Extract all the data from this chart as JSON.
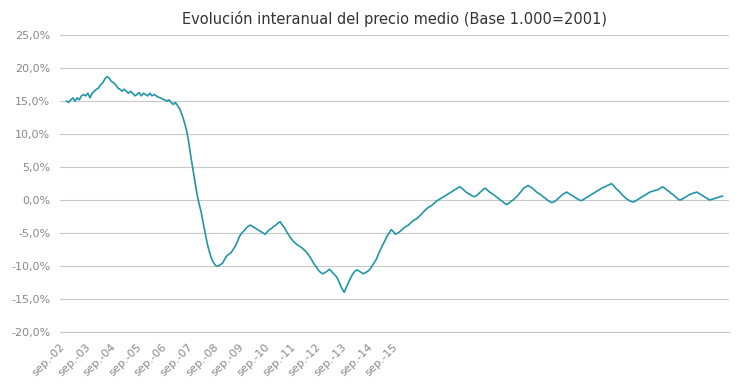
{
  "title": "Evolución interanual del precio medio (Base 1.000=2001)",
  "line_color": "#2196a8",
  "background_color": "#ffffff",
  "grid_color": "#c8c8c8",
  "ylim": [
    -0.2,
    0.25
  ],
  "yticks": [
    -0.2,
    -0.15,
    -0.1,
    -0.05,
    0.0,
    0.05,
    0.1,
    0.15,
    0.2,
    0.25
  ],
  "xtick_labels": [
    "sep.-02",
    "sep.-03",
    "sep.-04",
    "sep.-05",
    "sep.-06",
    "sep.-07",
    "sep.-08",
    "sep.-09",
    "sep.-10",
    "sep.-11",
    "sep.-12",
    "sep.-13",
    "sep.-14",
    "sep.-15"
  ],
  "series": [
    0.15,
    0.148,
    0.152,
    0.155,
    0.15,
    0.155,
    0.152,
    0.158,
    0.16,
    0.158,
    0.162,
    0.155,
    0.162,
    0.165,
    0.168,
    0.17,
    0.175,
    0.178,
    0.184,
    0.187,
    0.185,
    0.18,
    0.178,
    0.175,
    0.17,
    0.168,
    0.165,
    0.168,
    0.165,
    0.162,
    0.165,
    0.162,
    0.158,
    0.16,
    0.163,
    0.158,
    0.162,
    0.16,
    0.158,
    0.162,
    0.158,
    0.16,
    0.158,
    0.156,
    0.155,
    0.153,
    0.152,
    0.15,
    0.152,
    0.148,
    0.145,
    0.148,
    0.143,
    0.138,
    0.13,
    0.12,
    0.108,
    0.092,
    0.07,
    0.05,
    0.03,
    0.01,
    -0.005,
    -0.018,
    -0.035,
    -0.052,
    -0.068,
    -0.08,
    -0.09,
    -0.096,
    -0.1,
    -0.1,
    -0.098,
    -0.096,
    -0.09,
    -0.085,
    -0.082,
    -0.08,
    -0.075,
    -0.07,
    -0.063,
    -0.055,
    -0.05,
    -0.047,
    -0.043,
    -0.04,
    -0.038,
    -0.04,
    -0.042,
    -0.044,
    -0.046,
    -0.048,
    -0.05,
    -0.052,
    -0.048,
    -0.045,
    -0.043,
    -0.04,
    -0.038,
    -0.035,
    -0.033,
    -0.038,
    -0.042,
    -0.048,
    -0.053,
    -0.058,
    -0.062,
    -0.065,
    -0.068,
    -0.07,
    -0.072,
    -0.075,
    -0.078,
    -0.082,
    -0.087,
    -0.092,
    -0.098,
    -0.102,
    -0.107,
    -0.11,
    -0.112,
    -0.11,
    -0.108,
    -0.105,
    -0.108,
    -0.112,
    -0.115,
    -0.12,
    -0.128,
    -0.135,
    -0.14,
    -0.132,
    -0.125,
    -0.118,
    -0.112,
    -0.108,
    -0.106,
    -0.108,
    -0.11,
    -0.112,
    -0.11,
    -0.108,
    -0.105,
    -0.1,
    -0.095,
    -0.09,
    -0.082,
    -0.075,
    -0.068,
    -0.062,
    -0.055,
    -0.05,
    -0.045,
    -0.048,
    -0.052,
    -0.05,
    -0.048,
    -0.045,
    -0.042,
    -0.04,
    -0.038,
    -0.035,
    -0.032,
    -0.03,
    -0.028,
    -0.025,
    -0.022,
    -0.018,
    -0.015,
    -0.012,
    -0.01,
    -0.008,
    -0.005,
    -0.002,
    0.0,
    0.002,
    0.004,
    0.006,
    0.008,
    0.01,
    0.012,
    0.014,
    0.016,
    0.018,
    0.02,
    0.018,
    0.015,
    0.012,
    0.01,
    0.008,
    0.006,
    0.005,
    0.007,
    0.01,
    0.013,
    0.016,
    0.018,
    0.015,
    0.012,
    0.01,
    0.008,
    0.005,
    0.003,
    0.0,
    -0.002,
    -0.005,
    -0.007,
    -0.005,
    -0.002,
    0.0,
    0.003,
    0.006,
    0.01,
    0.014,
    0.018,
    0.02,
    0.022,
    0.02,
    0.018,
    0.015,
    0.012,
    0.01,
    0.008,
    0.005,
    0.003,
    0.0,
    -0.002,
    -0.004,
    -0.003,
    -0.001,
    0.002,
    0.005,
    0.008,
    0.01,
    0.012,
    0.01,
    0.008,
    0.006,
    0.004,
    0.002,
    0.0,
    -0.001,
    0.001,
    0.003,
    0.005,
    0.007,
    0.009,
    0.011,
    0.013,
    0.015,
    0.017,
    0.019,
    0.02,
    0.022,
    0.023,
    0.025,
    0.022,
    0.018,
    0.015,
    0.012,
    0.008,
    0.005,
    0.002,
    0.0,
    -0.002,
    -0.003,
    -0.002,
    0.0,
    0.002,
    0.004,
    0.006,
    0.008,
    0.01,
    0.012,
    0.013,
    0.014,
    0.015,
    0.016,
    0.018,
    0.02,
    0.018,
    0.015,
    0.013,
    0.01,
    0.008,
    0.005,
    0.002,
    0.0,
    0.001,
    0.003,
    0.005,
    0.007,
    0.009,
    0.01,
    0.011,
    0.012,
    0.01,
    0.008,
    0.006,
    0.004,
    0.002,
    0.0,
    0.001,
    0.002,
    0.003,
    0.004,
    0.005,
    0.006
  ]
}
